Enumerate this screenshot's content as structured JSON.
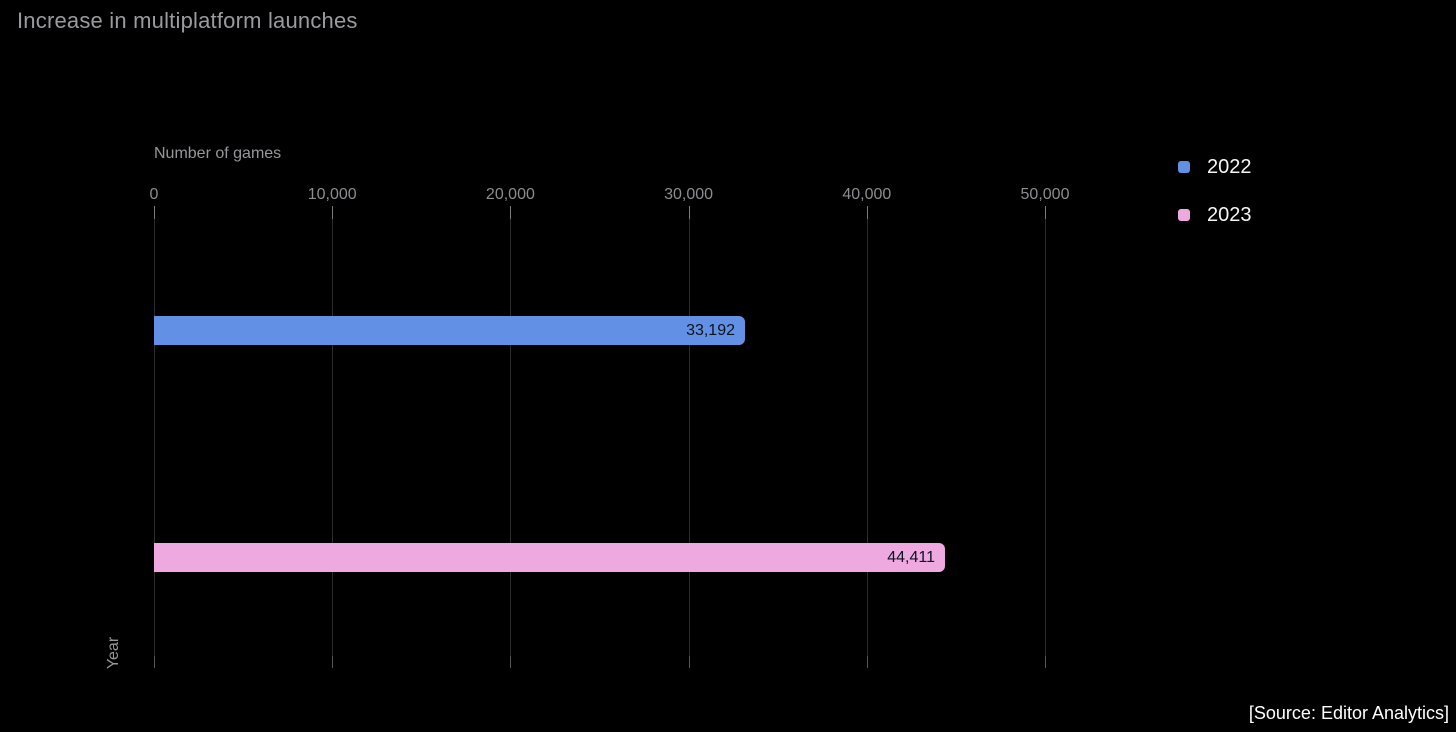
{
  "chart_data": {
    "type": "bar",
    "orientation": "horizontal",
    "title": "Increase in multiplatform launches",
    "xlabel": "Number of games",
    "ylabel": "Year",
    "categories": [
      "2022",
      "2023"
    ],
    "values": [
      33192,
      44411
    ],
    "series": [
      {
        "name": "2022",
        "value": 33192,
        "value_label": "33,192",
        "color": "#6190e4"
      },
      {
        "name": "2023",
        "value": 44411,
        "value_label": "44,411",
        "color": "#eda9e0"
      }
    ],
    "xlim": [
      0,
      55000
    ],
    "xticks": [
      0,
      10000,
      20000,
      30000,
      40000,
      50000
    ],
    "xtick_labels": [
      "0",
      "10,000",
      "20,000",
      "30,000",
      "40,000",
      "50,000"
    ],
    "grid": true,
    "legend_position": "top-right",
    "legend": [
      {
        "label": "2022",
        "color": "#6190e4"
      },
      {
        "label": "2023",
        "color": "#eda9e0"
      }
    ]
  },
  "footer": {
    "source": "[Source: Editor Analytics]"
  },
  "colors": {
    "background": "#000000",
    "title_text": "#9b9b9f",
    "axis_text": "#8d8d91",
    "gridline": "#2c2c2c",
    "bar_2022": "#6190e4",
    "bar_2023": "#eda9e0",
    "bar_value_text": "#0c1220",
    "legend_text": "#f5f5f7",
    "source_text": "#ffffff"
  }
}
